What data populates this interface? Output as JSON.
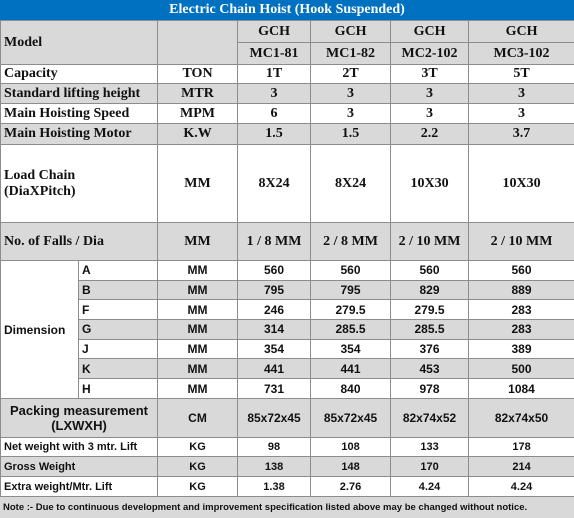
{
  "title": "Electric Chain Hoist (Hook Suspended)",
  "table": {
    "header": {
      "label": "Model",
      "models": [
        {
          "line1": "GCH",
          "line2": "MC1-81"
        },
        {
          "line1": "GCH",
          "line2": "MC1-82"
        },
        {
          "line1": "GCH",
          "line2": "MC2-102"
        },
        {
          "line1": "GCH",
          "line2": "MC3-102"
        }
      ]
    },
    "rows_top": [
      {
        "label": "Capacity",
        "unit": "TON",
        "values": [
          "1T",
          "2T",
          "3T",
          "5T"
        ]
      },
      {
        "label": "Standard lifting height",
        "unit": "MTR",
        "values": [
          3,
          3,
          3,
          3
        ]
      },
      {
        "label": "Main Hoisting Speed",
        "unit": "MPM",
        "values": [
          6,
          3,
          3,
          3
        ]
      },
      {
        "label": "Main Hoisting Motor",
        "unit": "K.W",
        "values": [
          1.5,
          1.5,
          2.2,
          3.7
        ]
      },
      {
        "label": "Load Chain (DiaXPitch)",
        "unit": "MM",
        "values": [
          "8X24",
          "8X24",
          "10X30",
          "10X30"
        ]
      },
      {
        "label": "No. of Falls / Dia",
        "unit": "MM",
        "values": [
          "1 / 8 MM",
          "2 / 8 MM",
          "2 / 10 MM",
          "2 / 10 MM"
        ]
      }
    ],
    "dimension": {
      "label": "Dimension",
      "rows": [
        {
          "key": "A",
          "unit": "MM",
          "values": [
            560,
            560,
            560,
            560
          ]
        },
        {
          "key": "B",
          "unit": "MM",
          "values": [
            795,
            795,
            829,
            889
          ]
        },
        {
          "key": "F",
          "unit": "MM",
          "values": [
            246,
            279.5,
            279.5,
            283
          ]
        },
        {
          "key": "G",
          "unit": "MM",
          "values": [
            314,
            285.5,
            285.5,
            283
          ]
        },
        {
          "key": "J",
          "unit": "MM",
          "values": [
            354,
            354,
            376,
            389
          ]
        },
        {
          "key": "K",
          "unit": "MM",
          "values": [
            441,
            441,
            453,
            500
          ]
        },
        {
          "key": "H",
          "unit": "MM",
          "values": [
            731,
            840,
            978,
            1084
          ]
        }
      ]
    },
    "rows_bottom": [
      {
        "label": "Packing measurement (LXWXH)",
        "unit": "CM",
        "values": [
          "85x72x45",
          "85x72x45",
          "82x74x52",
          "82x74x50"
        ]
      },
      {
        "label": "Net weight with 3 mtr. Lift",
        "unit": "KG",
        "values": [
          98,
          108,
          133,
          178
        ]
      },
      {
        "label": "Gross Weight",
        "unit": "KG",
        "values": [
          138,
          148,
          170,
          214
        ]
      },
      {
        "label": "Extra weight/Mtr. Lift",
        "unit": "KG",
        "values": [
          1.38,
          2.76,
          4.24,
          4.24
        ]
      }
    ]
  },
  "note": "Note :- Due to continuous development and improvement specification listed above may be changed without notice."
}
